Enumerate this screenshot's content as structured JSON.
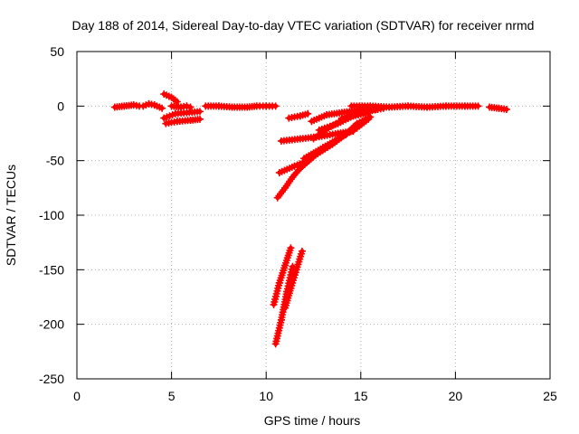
{
  "chart_data": {
    "type": "scatter",
    "title": "Day 188 of 2014, Sidereal Day-to-day VTEC variation (SDTVAR) for receiver nrmd",
    "xlabel": "GPS time / hours",
    "ylabel": "SDTVAR / TECUs",
    "xlim": [
      0,
      25
    ],
    "ylim": [
      -250,
      50
    ],
    "xticks": [
      0,
      5,
      10,
      15,
      20,
      25
    ],
    "yticks": [
      50,
      0,
      -50,
      -100,
      -150,
      -200,
      -250
    ],
    "grid": true,
    "legend": "none",
    "series": [
      {
        "color": "#ff0000",
        "marker": "plus",
        "tracks": [
          [
            [
              2.0,
              -1
            ],
            [
              2.5,
              0
            ],
            [
              3.0,
              1
            ],
            [
              3.3,
              0
            ]
          ],
          [
            [
              3.5,
              0
            ],
            [
              3.8,
              2
            ],
            [
              4.1,
              1
            ],
            [
              4.5,
              -2
            ]
          ],
          [
            [
              4.6,
              11
            ],
            [
              5.0,
              8
            ],
            [
              5.3,
              4
            ]
          ],
          [
            [
              5.0,
              0
            ],
            [
              5.5,
              -1
            ],
            [
              5.8,
              0
            ],
            [
              6.0,
              -1
            ]
          ],
          [
            [
              4.6,
              -11
            ],
            [
              5.2,
              -7
            ],
            [
              5.8,
              -6
            ],
            [
              6.5,
              -5
            ]
          ],
          [
            [
              4.7,
              -16
            ],
            [
              5.3,
              -14
            ],
            [
              6.0,
              -13
            ],
            [
              6.5,
              -12
            ]
          ],
          [
            [
              6.8,
              0
            ],
            [
              7.5,
              0
            ],
            [
              8.2,
              -1
            ],
            [
              9.0,
              -1
            ],
            [
              9.5,
              0
            ],
            [
              10.0,
              0
            ],
            [
              10.5,
              0
            ]
          ],
          [
            [
              11.2,
              -11
            ],
            [
              11.8,
              -9
            ],
            [
              12.2,
              -7
            ]
          ],
          [
            [
              10.7,
              -61
            ],
            [
              11.5,
              -55
            ],
            [
              12.2,
              -50
            ]
          ],
          [
            [
              10.8,
              -32
            ],
            [
              11.8,
              -30
            ],
            [
              12.8,
              -28
            ],
            [
              13.8,
              -25
            ],
            [
              14.6,
              -23
            ]
          ],
          [
            [
              10.6,
              -84
            ],
            [
              11.0,
              -75
            ],
            [
              11.4,
              -65
            ],
            [
              11.8,
              -57
            ],
            [
              12.6,
              -45
            ],
            [
              13.5,
              -35
            ],
            [
              14.2,
              -26
            ],
            [
              14.8,
              -16
            ],
            [
              15.5,
              -10
            ]
          ],
          [
            [
              12.0,
              -48
            ],
            [
              13.0,
              -38
            ],
            [
              14.0,
              -28
            ],
            [
              14.8,
              -20
            ],
            [
              15.4,
              -12
            ]
          ],
          [
            [
              12.5,
              -30
            ],
            [
              13.3,
              -20
            ],
            [
              14.1,
              -12
            ],
            [
              15.0,
              -6
            ],
            [
              15.7,
              -2
            ]
          ],
          [
            [
              12.4,
              -14
            ],
            [
              13.2,
              -8
            ],
            [
              14.0,
              -6
            ],
            [
              14.8,
              -4
            ],
            [
              15.8,
              -3
            ]
          ],
          [
            [
              12.8,
              -22
            ],
            [
              13.8,
              -16
            ],
            [
              14.6,
              -9
            ],
            [
              15.4,
              -6
            ]
          ],
          [
            [
              14.0,
              -11
            ],
            [
              14.8,
              -7
            ],
            [
              15.6,
              -4
            ],
            [
              16.2,
              -2
            ]
          ],
          [
            [
              14.5,
              0
            ],
            [
              15.5,
              0
            ],
            [
              16.5,
              -1
            ],
            [
              17.5,
              0
            ],
            [
              18.5,
              -1
            ],
            [
              19.5,
              0
            ],
            [
              20.5,
              0
            ],
            [
              21.2,
              0
            ]
          ],
          [
            [
              21.8,
              -1
            ],
            [
              22.3,
              -2
            ],
            [
              22.7,
              -3
            ]
          ],
          [
            [
              10.5,
              -218
            ],
            [
              10.8,
              -196
            ],
            [
              11.1,
              -170
            ],
            [
              11.4,
              -147
            ]
          ],
          [
            [
              10.4,
              -182
            ],
            [
              10.7,
              -162
            ],
            [
              11.0,
              -146
            ],
            [
              11.3,
              -130
            ]
          ],
          [
            [
              11.0,
              -185
            ],
            [
              11.3,
              -167
            ],
            [
              11.6,
              -150
            ],
            [
              11.9,
              -133
            ]
          ]
        ]
      }
    ]
  }
}
